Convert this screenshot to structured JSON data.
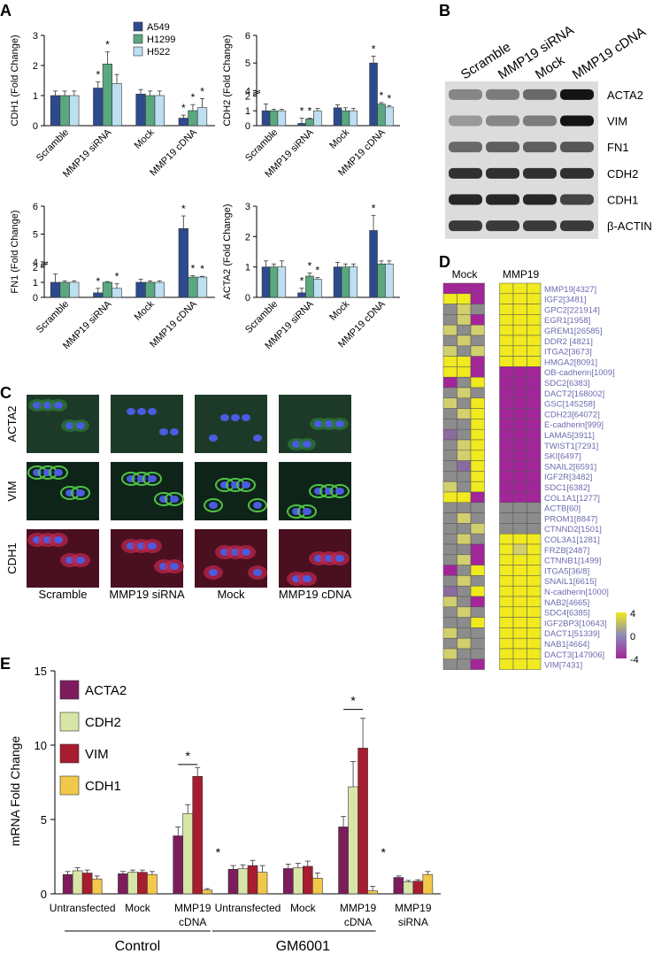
{
  "colors": {
    "A549": "#2e4a8e",
    "H1299": "#5aa780",
    "H522": "#bcdff2",
    "ACTA2": "#7d1c5c",
    "CDH2": "#d7e6a6",
    "VIM": "#a71c2f",
    "CDH1": "#f2c84a",
    "hm_hi": "#f0ea1e",
    "hm_mid": "#8c8c8c",
    "hm_lo": "#a3259a",
    "gene_label": "#6b6bb0"
  },
  "panels": {
    "A": "A",
    "B": "B",
    "C": "C",
    "D": "D",
    "E": "E"
  },
  "groups4": [
    "Scramble",
    "MMP19 siRNA",
    "Mock",
    "MMP19 cDNA"
  ],
  "chart_data": [
    {
      "type": "bar",
      "ylabel": "CDH1 (Fold Change)",
      "ylim": [
        0,
        3
      ],
      "ticks": [
        "0",
        "1",
        "2",
        "3"
      ],
      "categories": [
        "Scramble",
        "MMP19 siRNA",
        "Mock",
        "MMP19 cDNA"
      ],
      "series": [
        {
          "name": "A549",
          "values": [
            1.0,
            1.25,
            1.05,
            0.25
          ],
          "errors": [
            0.15,
            0.2,
            0.15,
            0.1
          ]
        },
        {
          "name": "H1299",
          "values": [
            1.0,
            2.05,
            1.0,
            0.5
          ],
          "errors": [
            0.15,
            0.4,
            0.15,
            0.2
          ]
        },
        {
          "name": "H522",
          "values": [
            1.0,
            1.4,
            1.0,
            0.6
          ],
          "errors": [
            0.15,
            0.3,
            0.15,
            0.3
          ]
        }
      ],
      "stars": [
        "",
        "**",
        "",
        "***"
      ],
      "legend": [
        "A549",
        "H1299",
        "H522"
      ]
    },
    {
      "type": "bar",
      "ylabel": "CDH2 (Fold Change)",
      "ylim": [
        0,
        6
      ],
      "axis_break": [
        2,
        4
      ],
      "ticks": [
        "0",
        "1",
        "2",
        "4",
        "5",
        "6"
      ],
      "categories": [
        "Scramble",
        "MMP19 siRNA",
        "Mock",
        "MMP19 cDNA"
      ],
      "series": [
        {
          "name": "A549",
          "values": [
            1.0,
            0.15,
            1.2,
            5.0
          ],
          "errors": [
            0.45,
            0.35,
            0.2,
            0.25
          ]
        },
        {
          "name": "H1299",
          "values": [
            1.0,
            0.45,
            1.0,
            1.45
          ],
          "errors": [
            0.1,
            0.05,
            0.2,
            0.1
          ]
        },
        {
          "name": "H522",
          "values": [
            1.0,
            1.0,
            1.0,
            1.25
          ],
          "errors": [
            0.1,
            0.15,
            0.15,
            0.1
          ]
        }
      ],
      "stars": [
        "",
        "**",
        "",
        "***"
      ]
    },
    {
      "type": "bar",
      "ylabel": "FN1 (Fold Change)",
      "ylim": [
        0,
        6
      ],
      "axis_break": [
        2,
        4
      ],
      "ticks": [
        "0",
        "1",
        "2",
        "4",
        "5",
        "6"
      ],
      "categories": [
        "Scramble",
        "MMP19 siRNA",
        "Mock",
        "MMP19 cDNA"
      ],
      "series": [
        {
          "name": "A549",
          "values": [
            1.0,
            0.3,
            1.0,
            5.2
          ],
          "errors": [
            0.55,
            0.3,
            0.2,
            0.45
          ]
        },
        {
          "name": "H1299",
          "values": [
            1.0,
            1.0,
            1.0,
            1.35
          ],
          "errors": [
            0.1,
            0.05,
            0.1,
            0.1
          ]
        },
        {
          "name": "H522",
          "values": [
            1.0,
            0.6,
            1.0,
            1.35
          ],
          "errors": [
            0.1,
            0.3,
            0.1,
            0.05
          ]
        }
      ],
      "stars": [
        "",
        "*_*",
        "",
        "***"
      ]
    },
    {
      "type": "bar",
      "ylabel": "ACTA2 (Fold Change)",
      "ylim": [
        0,
        3
      ],
      "ticks": [
        "0",
        "1",
        "2",
        "3"
      ],
      "categories": [
        "Scramble",
        "MMP19 siRNA",
        "Mock",
        "MMP19 cDNA"
      ],
      "series": [
        {
          "name": "A549",
          "values": [
            1.0,
            0.15,
            1.0,
            2.2
          ],
          "errors": [
            0.2,
            0.15,
            0.15,
            0.5
          ]
        },
        {
          "name": "H1299",
          "values": [
            1.0,
            0.7,
            1.0,
            1.1
          ],
          "errors": [
            0.1,
            0.1,
            0.1,
            0.1
          ]
        },
        {
          "name": "H522",
          "values": [
            1.0,
            0.6,
            1.0,
            1.1
          ],
          "errors": [
            0.2,
            0.05,
            0.1,
            0.1
          ]
        }
      ],
      "stars": [
        "",
        "***",
        "",
        "*__"
      ]
    },
    {
      "type": "bar",
      "ylabel": "mRNA Fold Change",
      "ylim": [
        0,
        15
      ],
      "ticks": [
        "0",
        "5",
        "10",
        "15"
      ],
      "categories": [
        "Untransfected",
        "Mock",
        "MMP19\ncDNA",
        "Untransfected",
        "Mock",
        "MMP19\ncDNA",
        "MMP19\nsiRNA"
      ],
      "series": [
        {
          "name": "ACTA2",
          "values": [
            1.3,
            1.35,
            3.9,
            1.65,
            1.7,
            4.5,
            1.1
          ],
          "errors": [
            0.2,
            0.15,
            0.6,
            0.25,
            0.3,
            0.7,
            0.1
          ]
        },
        {
          "name": "CDH2",
          "values": [
            1.55,
            1.45,
            5.4,
            1.7,
            1.75,
            7.2,
            0.8
          ],
          "errors": [
            0.2,
            0.15,
            0.6,
            0.25,
            0.3,
            1.7,
            0.1
          ]
        },
        {
          "name": "VIM",
          "values": [
            1.4,
            1.45,
            7.9,
            1.9,
            1.85,
            9.8,
            0.85
          ],
          "errors": [
            0.2,
            0.15,
            0.6,
            0.35,
            0.35,
            2.0,
            0.1
          ]
        },
        {
          "name": "CDH1",
          "values": [
            1.0,
            1.3,
            0.25,
            1.45,
            1.05,
            0.2,
            1.3
          ],
          "errors": [
            0.2,
            0.2,
            0.1,
            0.45,
            0.35,
            0.3,
            0.2
          ]
        }
      ],
      "legend": [
        "ACTA2",
        "CDH2",
        "VIM",
        "CDH1"
      ],
      "group_labels": [
        "Control",
        "GM6001"
      ],
      "star": "*"
    }
  ],
  "western": {
    "lanes": [
      "Scramble",
      "MMP19 siRNA",
      "Mock",
      "MMP19 cDNA"
    ],
    "bands": [
      "ACTA2",
      "VIM",
      "FN1",
      "CDH2",
      "CDH1",
      "β-ACTIN"
    ],
    "intensity": [
      [
        0.35,
        0.4,
        0.5,
        0.95
      ],
      [
        0.25,
        0.35,
        0.4,
        0.95
      ],
      [
        0.5,
        0.55,
        0.55,
        0.6
      ],
      [
        0.8,
        0.8,
        0.8,
        0.8
      ],
      [
        0.85,
        0.85,
        0.85,
        0.7
      ],
      [
        0.75,
        0.75,
        0.75,
        0.75
      ]
    ]
  },
  "micro": {
    "rows": [
      "ACTA2",
      "VIM",
      "CDH1"
    ],
    "cols": [
      "Scramble",
      "MMP19 siRNA",
      "Mock",
      "MMP19 cDNA"
    ]
  },
  "heatmap": {
    "col_groups": [
      "Mock",
      "MMP19"
    ],
    "scale": [
      "4",
      "0",
      "-4"
    ],
    "genes": [
      "MMP19[4327]",
      "IGF2[3481]",
      "GPC2[221914]",
      "EGR1[1958]",
      "GREM1[26585]",
      "DDR2 [4821]",
      "ITGA2[3673]",
      "HMGA2[8091]",
      "OB-cadherin[1009]",
      "SDC2[6383]",
      "DACT2[168002]",
      "GSC[145258]",
      "CDH23[64072]",
      "E-cadherin[999]",
      "LAMA5[3911]",
      "TWIST1[7291]",
      "SKI[6497]",
      "SNAIL2[6591]",
      "IGF2R[3482]",
      "SDC1[6382]",
      "COL1A1[1277]",
      "ACTB[60]",
      "PROM1[8847]",
      "CTNND2[1501]",
      "COL3A1[1281]",
      "FRZB[2487]",
      "CTNNB1[1499]",
      "ITGA5[36/8]",
      "SNAIL1[6615]",
      "N-cadherin[1000]",
      "NAB2[4665]",
      "SDC4[6385]",
      "IGF2BP3[10643]",
      "DACT1[51339]",
      "NAB1[4664]",
      "DACT3[147906]",
      "VIM[7431]"
    ],
    "values": [
      [
        -4,
        -4,
        -4,
        4,
        4,
        4
      ],
      [
        4,
        4,
        -4,
        4,
        4,
        4
      ],
      [
        0,
        2,
        0,
        4,
        4,
        4
      ],
      [
        0,
        2,
        -4,
        4,
        4,
        4
      ],
      [
        2,
        0,
        2,
        4,
        4,
        4
      ],
      [
        0,
        2,
        0,
        4,
        4,
        4
      ],
      [
        2,
        0,
        2,
        4,
        4,
        4
      ],
      [
        4,
        4,
        -4,
        4,
        4,
        4
      ],
      [
        4,
        4,
        -4,
        -4,
        -4,
        -4
      ],
      [
        -4,
        0,
        4,
        -4,
        -4,
        -4
      ],
      [
        0,
        2,
        0,
        -4,
        -4,
        -4
      ],
      [
        2,
        0,
        4,
        -4,
        -4,
        -4
      ],
      [
        0,
        2,
        4,
        -4,
        -4,
        -4
      ],
      [
        0,
        0,
        4,
        -4,
        -4,
        -4
      ],
      [
        -2,
        0,
        4,
        -4,
        -4,
        -4
      ],
      [
        0,
        2,
        4,
        -4,
        -4,
        -4
      ],
      [
        0,
        2,
        4,
        -4,
        -4,
        -4
      ],
      [
        0,
        -2,
        4,
        -4,
        -4,
        -4
      ],
      [
        0,
        0,
        4,
        -4,
        -4,
        -4
      ],
      [
        2,
        0,
        4,
        -4,
        -4,
        -4
      ],
      [
        4,
        4,
        -4,
        -4,
        -4,
        -4
      ],
      [
        0,
        0,
        0,
        0,
        0,
        0
      ],
      [
        0,
        2,
        0,
        0,
        0,
        0
      ],
      [
        0,
        0,
        2,
        0,
        0,
        0
      ],
      [
        0,
        2,
        0,
        4,
        4,
        4
      ],
      [
        0,
        0,
        -4,
        4,
        2,
        4
      ],
      [
        0,
        2,
        -4,
        4,
        4,
        4
      ],
      [
        -4,
        0,
        4,
        4,
        4,
        4
      ],
      [
        0,
        2,
        0,
        4,
        4,
        4
      ],
      [
        -2,
        0,
        4,
        4,
        4,
        4
      ],
      [
        2,
        0,
        -4,
        4,
        4,
        4
      ],
      [
        0,
        2,
        0,
        4,
        4,
        4
      ],
      [
        0,
        0,
        4,
        4,
        4,
        4
      ],
      [
        2,
        0,
        0,
        4,
        4,
        4
      ],
      [
        0,
        2,
        0,
        4,
        4,
        4
      ],
      [
        2,
        0,
        0,
        4,
        4,
        4
      ],
      [
        0,
        0,
        -4,
        4,
        4,
        4
      ]
    ]
  }
}
